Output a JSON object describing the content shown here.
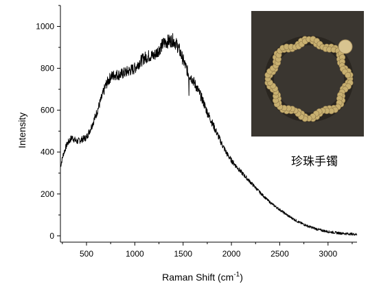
{
  "chart_data": {
    "type": "line",
    "xlabel": "Raman Shift (cm",
    "xlabel_superscript": "-1",
    "xlabel_suffix": ")",
    "ylabel": "Intensity",
    "xlim": [
      230,
      3300
    ],
    "ylim": [
      -30,
      1100
    ],
    "xticks": [
      500,
      1000,
      1500,
      2000,
      2500,
      3000
    ],
    "yticks": [
      0,
      200,
      400,
      600,
      800,
      1000
    ],
    "grid": false,
    "series": [
      {
        "color": "#000000",
        "x": [
          230,
          260,
          300,
          350,
          400,
          450,
          500,
          550,
          600,
          650,
          700,
          750,
          800,
          850,
          900,
          950,
          1000,
          1050,
          1100,
          1150,
          1200,
          1250,
          1300,
          1350,
          1400,
          1450,
          1500,
          1550,
          1600,
          1650,
          1700,
          1750,
          1800,
          1850,
          1900,
          1950,
          2000,
          2100,
          2200,
          2300,
          2400,
          2500,
          2600,
          2700,
          2800,
          2900,
          3000,
          3100,
          3200,
          3300
        ],
        "y": [
          330,
          390,
          440,
          470,
          450,
          460,
          470,
          520,
          580,
          650,
          720,
          760,
          770,
          770,
          780,
          790,
          800,
          830,
          850,
          860,
          860,
          890,
          920,
          930,
          935,
          900,
          840,
          780,
          745,
          700,
          650,
          590,
          540,
          490,
          440,
          395,
          360,
          305,
          255,
          205,
          160,
          125,
          92,
          65,
          45,
          30,
          20,
          14,
          10,
          7
        ]
      }
    ],
    "spike": {
      "x": 1560,
      "y": 670
    }
  },
  "inset": {
    "caption": "珍珠手镯",
    "image": "pearl-bracelet-photo",
    "background_color": "#3a3630",
    "pearl_color": "#c8b070"
  }
}
